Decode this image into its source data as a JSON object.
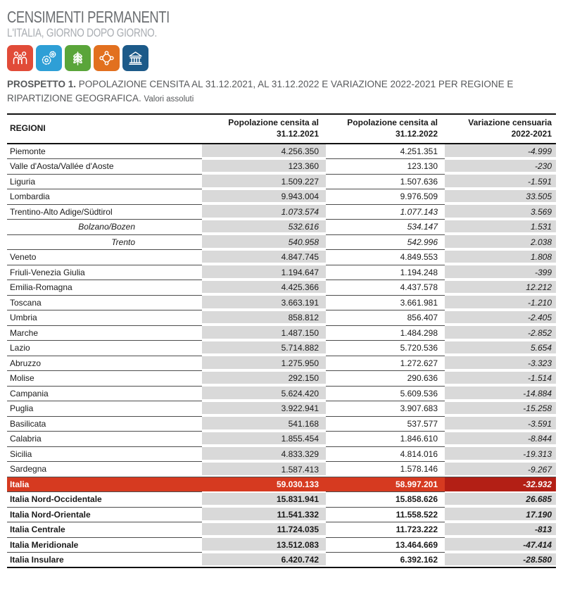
{
  "logo": {
    "title": "CENSIMENTI PERMANENTI",
    "subtitle": "L'ITALIA, GIORNO DOPO GIORNO.",
    "icons": [
      {
        "name": "population-families-census-icon",
        "color": "#e14b38",
        "glyph": "people"
      },
      {
        "name": "industry-services-census-icon",
        "color": "#2e9fd6",
        "glyph": "gears"
      },
      {
        "name": "agriculture-census-icon",
        "color": "#5aa53a",
        "glyph": "wheat"
      },
      {
        "name": "nonprofit-census-icon",
        "color": "#e2701f",
        "glyph": "network"
      },
      {
        "name": "public-institutions-census-icon",
        "color": "#1c5a89",
        "glyph": "classical-building"
      }
    ]
  },
  "title": {
    "label": "PROSPETTO 1.",
    "text": "POPOLAZIONE CENSITA AL 31.12.2021, AL 31.12.2022 E VARIAZIONE 2022-2021 PER REGIONE E RIPARTIZIONE GEOGRAFICA.",
    "note": "Valori assoluti"
  },
  "table": {
    "headers": {
      "region": "REGIONI",
      "pop2021_line1": "Popolazione censita al",
      "pop2021_line2": "31.12.2021",
      "pop2022_line1": "Popolazione censita al",
      "pop2022_line2": "31.12.2022",
      "variation_line1": "Variazione censuaria",
      "variation_line2": "2022-2021"
    },
    "rows": [
      {
        "name": "Piemonte",
        "pop_2021": "4.256.350",
        "pop_2022": "4.251.351",
        "variation": "-4.999",
        "style": "region"
      },
      {
        "name": "Valle d'Aosta/Vallée d'Aoste",
        "pop_2021": "123.360",
        "pop_2022": "123.130",
        "variation": "-230",
        "style": "region"
      },
      {
        "name": "Liguria",
        "pop_2021": "1.509.227",
        "pop_2022": "1.507.636",
        "variation": "-1.591",
        "style": "region"
      },
      {
        "name": "Lombardia",
        "pop_2021": "9.943.004",
        "pop_2022": "9.976.509",
        "variation": "33.505",
        "style": "region"
      },
      {
        "name": "Trentino-Alto Adige/Südtirol",
        "pop_2021": "1.073.574",
        "pop_2022": "1.077.143",
        "variation": "3.569",
        "style": "region-italic"
      },
      {
        "name": "Bolzano/Bozen",
        "pop_2021": "532.616",
        "pop_2022": "534.147",
        "variation": "1.531",
        "style": "province"
      },
      {
        "name": "Trento",
        "pop_2021": "540.958",
        "pop_2022": "542.996",
        "variation": "2.038",
        "style": "province"
      },
      {
        "name": "Veneto",
        "pop_2021": "4.847.745",
        "pop_2022": "4.849.553",
        "variation": "1.808",
        "style": "region"
      },
      {
        "name": "Friuli-Venezia Giulia",
        "pop_2021": "1.194.647",
        "pop_2022": "1.194.248",
        "variation": "-399",
        "style": "region"
      },
      {
        "name": "Emilia-Romagna",
        "pop_2021": "4.425.366",
        "pop_2022": "4.437.578",
        "variation": "12.212",
        "style": "region"
      },
      {
        "name": "Toscana",
        "pop_2021": "3.663.191",
        "pop_2022": "3.661.981",
        "variation": "-1.210",
        "style": "region"
      },
      {
        "name": "Umbria",
        "pop_2021": "858.812",
        "pop_2022": "856.407",
        "variation": "-2.405",
        "style": "region"
      },
      {
        "name": "Marche",
        "pop_2021": "1.487.150",
        "pop_2022": "1.484.298",
        "variation": "-2.852",
        "style": "region"
      },
      {
        "name": "Lazio",
        "pop_2021": "5.714.882",
        "pop_2022": "5.720.536",
        "variation": "5.654",
        "style": "region"
      },
      {
        "name": "Abruzzo",
        "pop_2021": "1.275.950",
        "pop_2022": "1.272.627",
        "variation": "-3.323",
        "style": "region"
      },
      {
        "name": "Molise",
        "pop_2021": "292.150",
        "pop_2022": "290.636",
        "variation": "-1.514",
        "style": "region"
      },
      {
        "name": "Campania",
        "pop_2021": "5.624.420",
        "pop_2022": "5.609.536",
        "variation": "-14.884",
        "style": "region"
      },
      {
        "name": "Puglia",
        "pop_2021": "3.922.941",
        "pop_2022": "3.907.683",
        "variation": "-15.258",
        "style": "region"
      },
      {
        "name": "Basilicata",
        "pop_2021": "541.168",
        "pop_2022": "537.577",
        "variation": "-3.591",
        "style": "region"
      },
      {
        "name": "Calabria",
        "pop_2021": "1.855.454",
        "pop_2022": "1.846.610",
        "variation": "-8.844",
        "style": "region"
      },
      {
        "name": "Sicilia",
        "pop_2021": "4.833.329",
        "pop_2022": "4.814.016",
        "variation": "-19.313",
        "style": "region"
      },
      {
        "name": "Sardegna",
        "pop_2021": "1.587.413",
        "pop_2022": "1.578.146",
        "variation": "-9.267",
        "style": "region"
      },
      {
        "name": "Italia",
        "pop_2021": "59.030.133",
        "pop_2022": "58.997.201",
        "variation": "-32.932",
        "style": "italy"
      },
      {
        "name": "Italia Nord-Occidentale",
        "pop_2021": "15.831.941",
        "pop_2022": "15.858.626",
        "variation": "26.685",
        "style": "macro"
      },
      {
        "name": "Italia Nord-Orientale",
        "pop_2021": "11.541.332",
        "pop_2022": "11.558.522",
        "variation": "17.190",
        "style": "macro"
      },
      {
        "name": "Italia Centrale",
        "pop_2021": "11.724.035",
        "pop_2022": "11.723.222",
        "variation": "-813",
        "style": "macro"
      },
      {
        "name": "Italia Meridionale",
        "pop_2021": "13.512.083",
        "pop_2022": "13.464.669",
        "variation": "-47.414",
        "style": "macro"
      },
      {
        "name": "Italia Insulare",
        "pop_2021": "6.420.742",
        "pop_2022": "6.392.162",
        "variation": "-28.580",
        "style": "macro"
      }
    ]
  },
  "colors": {
    "shaded_column": "#d9d9d9",
    "italy_row": "#d63a20",
    "italy_variation_cell": "#b31f15",
    "row_separator": "#4d4d4d",
    "table_frame": "#111111",
    "logo_title_gray": "#6b6e71",
    "logo_subtitle_gray": "#a9adb2"
  }
}
